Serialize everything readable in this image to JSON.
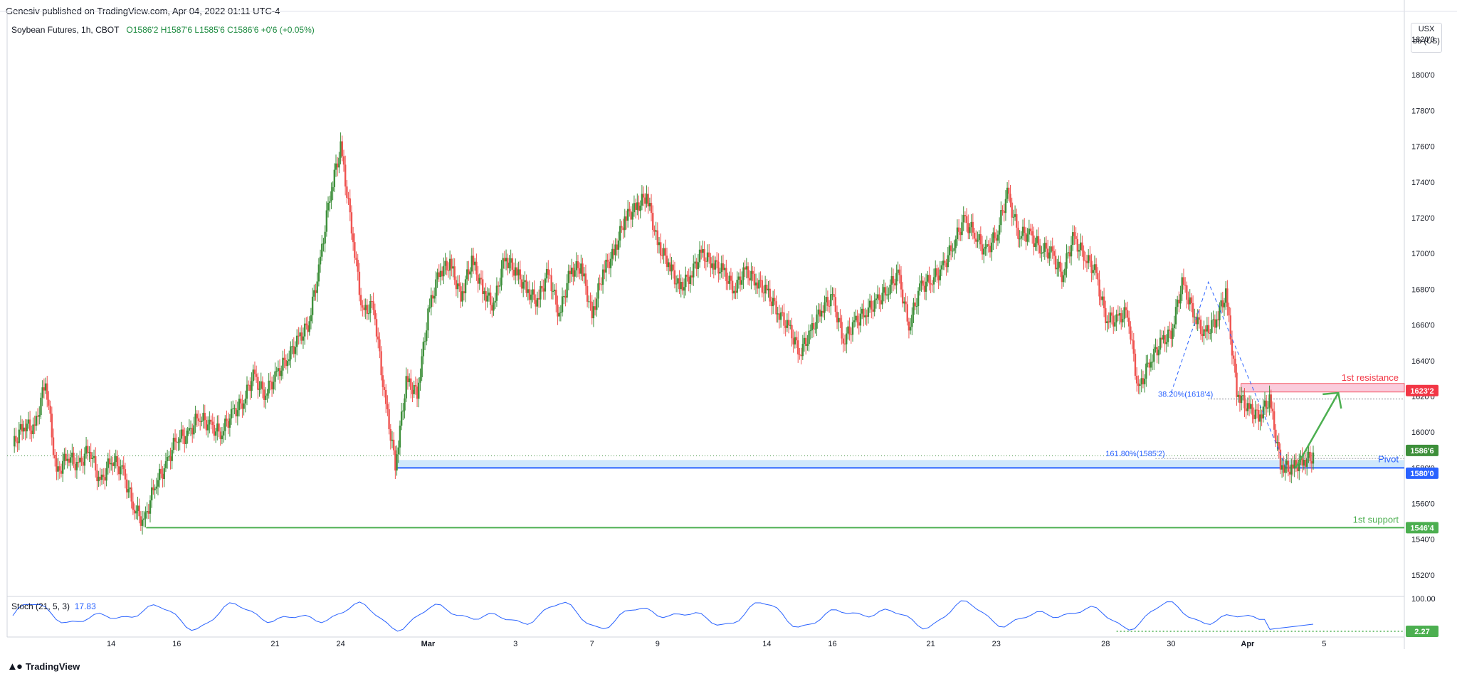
{
  "publisher": "Genesiv published on TradingView.com, Apr 04, 2022 01:11 UTC-4",
  "legend": {
    "symbol": "Soybean Futures, 1h, CBOT",
    "ohlc": "O1586'2 H1587'6 L1585'6 C1586'6 +0'6 (+0.05%)"
  },
  "units": {
    "currency": "USX",
    "unit": "bu (US)"
  },
  "stoch_legend": {
    "label": "Stoch (21, 5, 3)",
    "value": "17.83"
  },
  "brand": "TradingView",
  "colors": {
    "up": "#26a69a",
    "up_candle": "#3d8f3a",
    "down": "#ef5350",
    "resistance": "#f23645",
    "pivot": "#2962ff",
    "support": "#4caf50",
    "stoch": "#2962ff"
  },
  "chart_data": {
    "type": "candlestick",
    "title": "Soybean Futures, 1h, CBOT",
    "y_axis": {
      "ticks": [
        "1820'0",
        "1800'0",
        "1780'0",
        "1760'0",
        "1740'0",
        "1720'0",
        "1700'0",
        "1680'0",
        "1660'0",
        "1640'0",
        "1620'0",
        "1600'0",
        "1580'0",
        "1560'0",
        "1540'0",
        "1520'0"
      ],
      "tick_values": [
        1820,
        1800,
        1780,
        1760,
        1740,
        1720,
        1700,
        1680,
        1660,
        1640,
        1620,
        1600,
        1580,
        1560,
        1540,
        1520
      ],
      "range": [
        1508,
        1826
      ]
    },
    "x_axis": {
      "ticks": [
        "14",
        "16",
        "21",
        "24",
        "Mar",
        "3",
        "7",
        "9",
        "14",
        "16",
        "21",
        "23",
        "28",
        "30",
        "Apr",
        "5"
      ],
      "tick_index": [
        9,
        15,
        24,
        30,
        38,
        46,
        53,
        59,
        69,
        75,
        84,
        90,
        100,
        106,
        113,
        120
      ]
    },
    "price_path": [
      [
        0,
        1592
      ],
      [
        1,
        1605
      ],
      [
        2,
        1601
      ],
      [
        3,
        1630
      ],
      [
        4,
        1575
      ],
      [
        5,
        1588
      ],
      [
        6,
        1580
      ],
      [
        7,
        1592
      ],
      [
        8,
        1570
      ],
      [
        9,
        1586
      ],
      [
        10,
        1578
      ],
      [
        11,
        1560
      ],
      [
        12,
        1548
      ],
      [
        13,
        1572
      ],
      [
        14,
        1580
      ],
      [
        15,
        1598
      ],
      [
        16,
        1597
      ],
      [
        17,
        1610
      ],
      [
        18,
        1603
      ],
      [
        19,
        1600
      ],
      [
        20,
        1609
      ],
      [
        21,
        1617
      ],
      [
        22,
        1631
      ],
      [
        23,
        1622
      ],
      [
        24,
        1630
      ],
      [
        25,
        1641
      ],
      [
        26,
        1650
      ],
      [
        27,
        1660
      ],
      [
        28,
        1690
      ],
      [
        29,
        1733
      ],
      [
        30,
        1759
      ],
      [
        31,
        1715
      ],
      [
        32,
        1666
      ],
      [
        33,
        1672
      ],
      [
        34,
        1620
      ],
      [
        35,
        1582
      ],
      [
        36,
        1628
      ],
      [
        37,
        1622
      ],
      [
        38,
        1666
      ],
      [
        39,
        1690
      ],
      [
        40,
        1694
      ],
      [
        41,
        1676
      ],
      [
        42,
        1696
      ],
      [
        43,
        1680
      ],
      [
        44,
        1670
      ],
      [
        45,
        1698
      ],
      [
        46,
        1690
      ],
      [
        47,
        1680
      ],
      [
        48,
        1673
      ],
      [
        49,
        1690
      ],
      [
        50,
        1665
      ],
      [
        51,
        1690
      ],
      [
        52,
        1693
      ],
      [
        53,
        1665
      ],
      [
        54,
        1690
      ],
      [
        55,
        1700
      ],
      [
        56,
        1720
      ],
      [
        57,
        1725
      ],
      [
        58,
        1733
      ],
      [
        59,
        1705
      ],
      [
        60,
        1695
      ],
      [
        61,
        1680
      ],
      [
        62,
        1688
      ],
      [
        63,
        1700
      ],
      [
        64,
        1695
      ],
      [
        65,
        1690
      ],
      [
        66,
        1680
      ],
      [
        67,
        1690
      ],
      [
        68,
        1685
      ],
      [
        69,
        1678
      ],
      [
        70,
        1668
      ],
      [
        71,
        1658
      ],
      [
        72,
        1645
      ],
      [
        73,
        1655
      ],
      [
        74,
        1670
      ],
      [
        75,
        1675
      ],
      [
        76,
        1652
      ],
      [
        77,
        1660
      ],
      [
        78,
        1668
      ],
      [
        79,
        1672
      ],
      [
        80,
        1680
      ],
      [
        81,
        1688
      ],
      [
        82,
        1660
      ],
      [
        83,
        1680
      ],
      [
        84,
        1686
      ],
      [
        85,
        1690
      ],
      [
        86,
        1705
      ],
      [
        87,
        1718
      ],
      [
        88,
        1712
      ],
      [
        89,
        1700
      ],
      [
        90,
        1711
      ],
      [
        91,
        1733
      ],
      [
        92,
        1712
      ],
      [
        93,
        1710
      ],
      [
        94,
        1704
      ],
      [
        95,
        1700
      ],
      [
        96,
        1688
      ],
      [
        97,
        1708
      ],
      [
        98,
        1700
      ],
      [
        99,
        1690
      ],
      [
        100,
        1665
      ],
      [
        101,
        1662
      ],
      [
        102,
        1668
      ],
      [
        103,
        1622
      ],
      [
        104,
        1640
      ],
      [
        105,
        1649
      ],
      [
        106,
        1656
      ],
      [
        107,
        1683
      ],
      [
        108,
        1668
      ],
      [
        109,
        1654
      ],
      [
        110,
        1662
      ],
      [
        111,
        1677
      ],
      [
        112,
        1623
      ],
      [
        113,
        1613
      ],
      [
        114,
        1609
      ],
      [
        115,
        1618
      ],
      [
        116,
        1582
      ],
      [
        117,
        1579
      ],
      [
        118,
        1584
      ],
      [
        119,
        1586
      ]
    ],
    "levels": [
      {
        "name": "1st resistance",
        "price_label": "1623'2",
        "value": 1623.25,
        "color": "#f23645"
      },
      {
        "name": "Pivot",
        "price_label": "1580'0",
        "value": 1580.0,
        "color": "#2962ff"
      },
      {
        "name": "1st support",
        "price_label": "1546'4",
        "value": 1546.5,
        "color": "#4caf50"
      }
    ],
    "last_price": {
      "label": "1586'6",
      "value": 1586.75
    },
    "fibonacci": [
      {
        "label": "38.20%(1618'4)",
        "value": 1618.5
      },
      {
        "label": "161.80%(1585'2)",
        "value": 1585.25
      }
    ],
    "stochastic": {
      "label": "Stoch (21, 5, 3)",
      "value": 17.83,
      "axis_label": "100.00",
      "level_label": "2.27"
    },
    "annotations": [
      "1st resistance",
      "Pivot",
      "1st support"
    ],
    "grid": false
  }
}
